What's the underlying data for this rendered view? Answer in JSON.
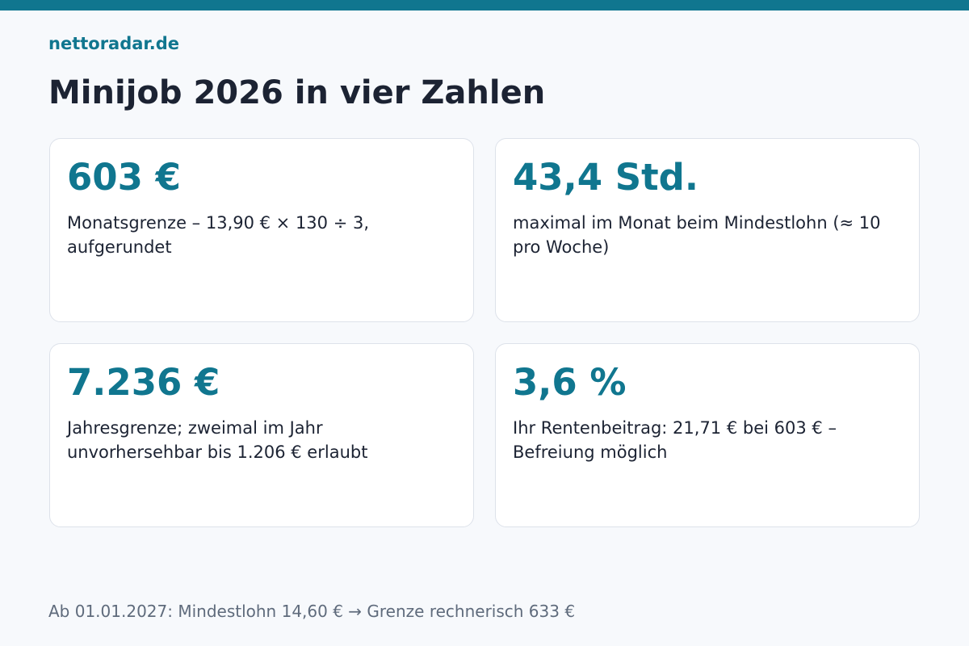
{
  "brand": "nettoradar.de",
  "title": "Minijob 2026 in vier Zahlen",
  "cards": [
    {
      "value": "603 €",
      "text": "Monatsgrenze – 13,90 € × 130 ÷ 3, aufgerundet"
    },
    {
      "value": "43,4 Std.",
      "text": "maximal im Monat beim Mindestlohn (≈ 10 pro Woche)"
    },
    {
      "value": "7.236 €",
      "text": "Jahresgrenze; zweimal im Jahr unvorhersehbar bis 1.206 € erlaubt"
    },
    {
      "value": "3,6 %",
      "text": "Ihr Rentenbeitrag: 21,71 € bei 603 € – Befreiung möglich"
    }
  ],
  "footnote": "Ab 01.01.2027: Mindestlohn 14,60 € → Grenze rechnerisch 633 €",
  "colors": {
    "accent": "#10768f",
    "text": "#1c2333",
    "muted": "#5f6b7c",
    "background": "#f7f9fc"
  }
}
